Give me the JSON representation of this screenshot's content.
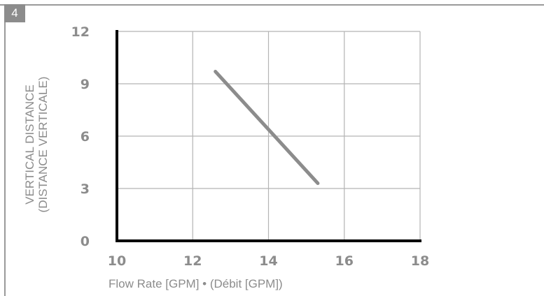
{
  "figure_number": "4",
  "colors": {
    "frame": "#9a9a9a",
    "badge": "#8c8c8c",
    "grid": "#b4b4b4",
    "axis": "#000000",
    "line": "#8c8c8c",
    "text": "#8c8c8c"
  },
  "chart_data": {
    "type": "line",
    "title": "",
    "xlabel": "Flow Rate [GPM] • (Débit [GPM])",
    "ylabel_lines": [
      "VERTICAL DISTANCE",
      "(DISTANCE VERTICALE)"
    ],
    "xlim": [
      10,
      18
    ],
    "ylim": [
      0,
      12
    ],
    "x_ticks": [
      10,
      12,
      14,
      16,
      18
    ],
    "y_ticks": [
      0,
      3,
      6,
      9,
      12
    ],
    "grid": true,
    "series": [
      {
        "x": [
          12.6,
          15.3
        ],
        "y": [
          9.7,
          3.3
        ]
      }
    ]
  }
}
